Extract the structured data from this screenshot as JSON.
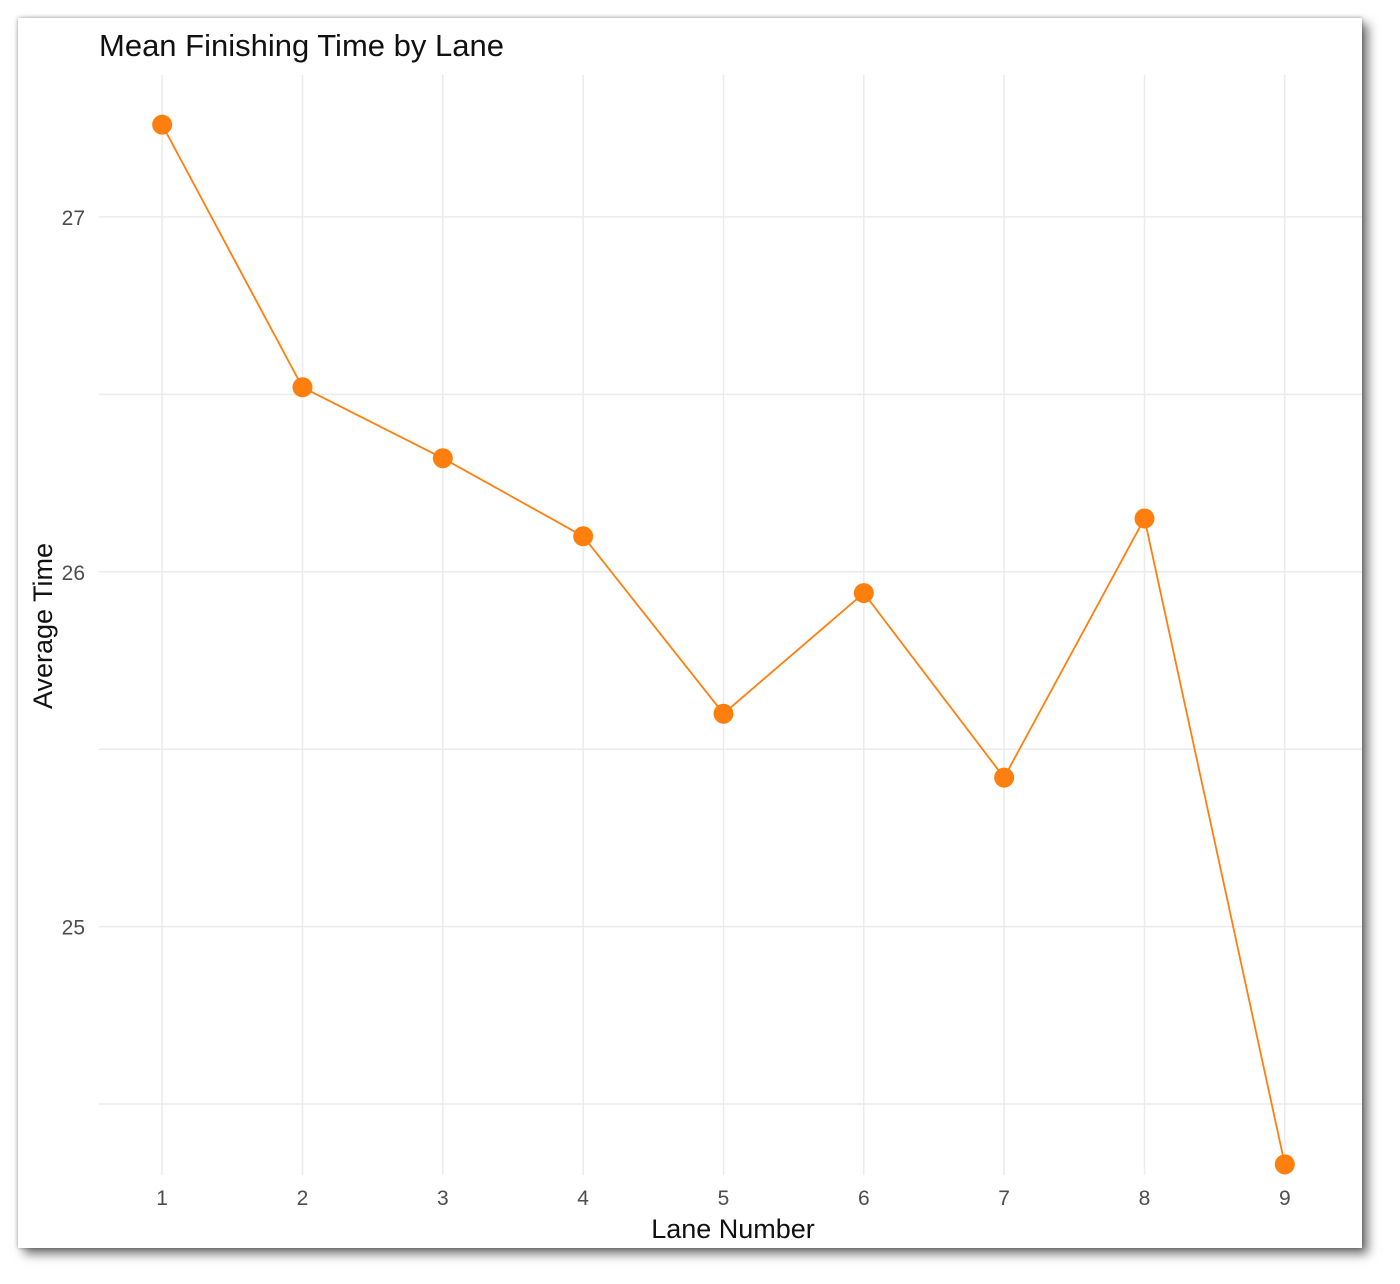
{
  "chart_data": {
    "type": "line",
    "title": "Mean Finishing Time by Lane",
    "xlabel": "Lane Number",
    "ylabel": "Average Time",
    "x": [
      1,
      2,
      3,
      4,
      5,
      6,
      7,
      8,
      9
    ],
    "x_ticks": [
      "1",
      "2",
      "3",
      "4",
      "5",
      "6",
      "7",
      "8",
      "9"
    ],
    "y_ticks": [
      "25",
      "26",
      "27"
    ],
    "y_tick_values": [
      25,
      26,
      27
    ],
    "y_minor_ticks": [
      24.5,
      25.5,
      26.5
    ],
    "xlim": [
      0.55,
      9.55
    ],
    "ylim": [
      24.3,
      27.4
    ],
    "grid": true,
    "series": [
      {
        "values": [
          27.26,
          26.52,
          26.32,
          26.1,
          25.6,
          25.94,
          25.42,
          26.15,
          24.33
        ],
        "color": "#ff7f0e"
      }
    ]
  }
}
